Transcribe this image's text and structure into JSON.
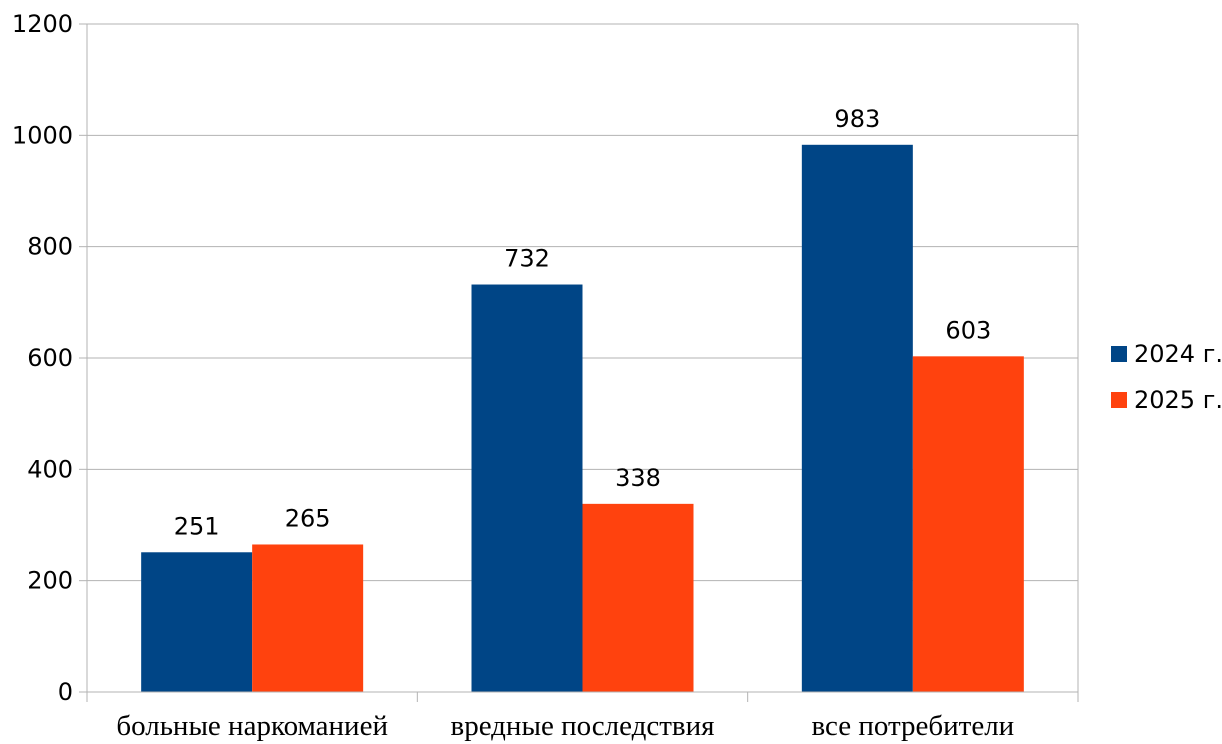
{
  "chart_data": {
    "type": "bar",
    "categories": [
      "больные наркоманией",
      "вредные последствия",
      "все потребители"
    ],
    "series": [
      {
        "name": "2024 г.",
        "values": [
          251,
          732,
          983
        ],
        "color": "#004586"
      },
      {
        "name": "2025 г.",
        "values": [
          265,
          338,
          603
        ],
        "color": "#ff420e"
      }
    ],
    "ylim": [
      0,
      1200
    ],
    "yticks": [
      0,
      200,
      400,
      600,
      800,
      1000,
      1200
    ],
    "grid": true,
    "legend_position": "right",
    "data_labels": true
  }
}
